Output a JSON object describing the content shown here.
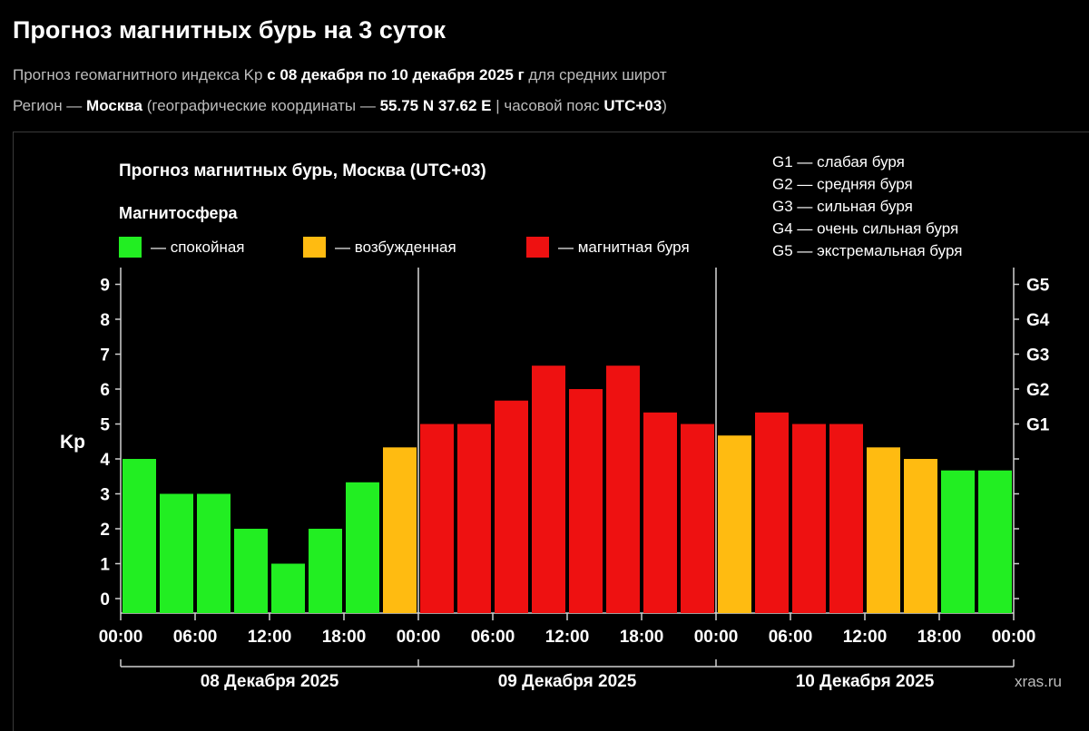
{
  "header": {
    "title": "Прогноз магнитных бурь на 3 суток",
    "line1": {
      "prefix": "Прогноз геомагнитного индекса Kp ",
      "bold": "с 08 декабря по 10 декабря 2025 г",
      "suffix": " для средних широт"
    },
    "line2": {
      "p1": "Регион — ",
      "b1": "Москва",
      "p2": " (географические координаты — ",
      "b2": "55.75 N 37.62 E",
      "p3": " | часовой пояс ",
      "b3": "UTC+03",
      "p4": ")"
    }
  },
  "chart_data": {
    "type": "bar",
    "title": "Прогноз магнитных бурь, Москва (UTC+03)",
    "legend_title": "Магнитосфера",
    "legend": [
      {
        "label": "— спокойная",
        "color": "#22ee22"
      },
      {
        "label": "— возбужденная",
        "color": "#ffbb11"
      },
      {
        "label": "— магнитная буря",
        "color": "#ee1111"
      }
    ],
    "g_legend": [
      "G1 — слабая буря",
      "G2 — средняя буря",
      "G3 — сильная буря",
      "G4 — очень сильная буря",
      "G5 — экстремальная буря"
    ],
    "ylabel": "Kp",
    "ylim": [
      0,
      9
    ],
    "yticks": [
      "0",
      "1",
      "2",
      "3",
      "4",
      "5",
      "6",
      "7",
      "8",
      "9"
    ],
    "right_ticks": [
      {
        "value": 5,
        "label": "G1"
      },
      {
        "value": 6,
        "label": "G2"
      },
      {
        "value": 7,
        "label": "G3"
      },
      {
        "value": 8,
        "label": "G4"
      },
      {
        "value": 9,
        "label": "G5"
      }
    ],
    "xticks": [
      "00:00",
      "06:00",
      "12:00",
      "18:00",
      "00:00",
      "06:00",
      "12:00",
      "18:00",
      "00:00",
      "06:00",
      "12:00",
      "18:00",
      "00:00"
    ],
    "days": [
      "08 Декабря 2025",
      "09 Декабря 2025",
      "10 Декабря 2025"
    ],
    "intervals_per_day": 8,
    "values": [
      4.0,
      3.0,
      3.0,
      2.0,
      1.0,
      2.0,
      3.33,
      4.33,
      5.0,
      5.0,
      5.67,
      6.67,
      6.0,
      6.67,
      5.33,
      5.0,
      4.67,
      5.33,
      5.0,
      5.0,
      4.33,
      4.0,
      3.67,
      3.67
    ],
    "categories": [
      "calm",
      "calm",
      "calm",
      "calm",
      "calm",
      "calm",
      "calm",
      "excited",
      "storm",
      "storm",
      "storm",
      "storm",
      "storm",
      "storm",
      "storm",
      "storm",
      "excited",
      "storm",
      "storm",
      "storm",
      "excited",
      "excited",
      "calm",
      "calm"
    ],
    "category_colors": {
      "calm": "#22ee22",
      "excited": "#ffbb11",
      "storm": "#ee1111"
    },
    "source": "xras.ru"
  }
}
